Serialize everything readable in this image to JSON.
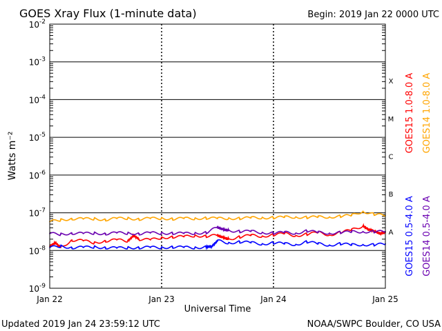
{
  "header": {
    "title": "GOES Xray Flux (1-minute data)",
    "begin": "Begin:  2019 Jan 22 0000 UTC"
  },
  "footer": {
    "updated": "Updated 2019 Jan 24 23:59:12 UTC",
    "credit": "NOAA/SWPC Boulder, CO USA"
  },
  "chart_data": {
    "type": "line",
    "title": "GOES Xray Flux (1-minute data)",
    "xlabel": "Universal Time",
    "ylabel": "Watts m⁻²",
    "y_scale": "log",
    "ylim": [
      1e-09,
      0.01
    ],
    "xlim": [
      0,
      3
    ],
    "x_ticks": [
      {
        "value": 0,
        "label": "Jan 22"
      },
      {
        "value": 1,
        "label": "Jan 23"
      },
      {
        "value": 2,
        "label": "Jan 24"
      },
      {
        "value": 3,
        "label": "Jan 25"
      }
    ],
    "y_ticks": [
      {
        "exp": -2,
        "base": "10",
        "sup": "-2"
      },
      {
        "exp": -3,
        "base": "10",
        "sup": "-3"
      },
      {
        "exp": -4,
        "base": "10",
        "sup": "-4"
      },
      {
        "exp": -5,
        "base": "10",
        "sup": "-5"
      },
      {
        "exp": -6,
        "base": "10",
        "sup": "-6"
      },
      {
        "exp": -7,
        "base": "10",
        "sup": "-7"
      },
      {
        "exp": -8,
        "base": "10",
        "sup": "-8"
      },
      {
        "exp": -9,
        "base": "10",
        "sup": "-9"
      }
    ],
    "flare_classes": [
      {
        "label": "X",
        "exp": -4
      },
      {
        "label": "M",
        "exp": -5
      },
      {
        "label": "C",
        "exp": -6
      },
      {
        "label": "B",
        "exp": -7
      },
      {
        "label": "A",
        "exp": -8
      }
    ],
    "grid": true,
    "legend_position": "right",
    "series": [
      {
        "name": "GOES15 1.0-8.0 A",
        "color": "#ff0000",
        "points": [
          [
            0.0,
            1.3e-08
          ],
          [
            0.05,
            1.6e-08
          ],
          [
            0.1,
            1.2e-08
          ],
          [
            0.2,
            1.9e-08
          ],
          [
            0.3,
            1.8e-08
          ],
          [
            0.4,
            1.6e-08
          ],
          [
            0.5,
            1.8e-08
          ],
          [
            0.6,
            1.9e-08
          ],
          [
            0.7,
            1.8e-08
          ],
          [
            0.75,
            2.5e-08
          ],
          [
            0.8,
            2e-08
          ],
          [
            0.9,
            1.9e-08
          ],
          [
            1.0,
            2.2e-08
          ],
          [
            1.1,
            2.3e-08
          ],
          [
            1.2,
            2.3e-08
          ],
          [
            1.3,
            2.5e-08
          ],
          [
            1.4,
            2.4e-08
          ],
          [
            1.5,
            2.5e-08
          ],
          [
            1.55,
            2.2e-08
          ],
          [
            1.6,
            2e-08
          ],
          [
            1.7,
            2.3e-08
          ],
          [
            1.8,
            2.5e-08
          ],
          [
            1.9,
            2.4e-08
          ],
          [
            2.0,
            2.6e-08
          ],
          [
            2.1,
            2.8e-08
          ],
          [
            2.2,
            2.5e-08
          ],
          [
            2.3,
            2.7e-08
          ],
          [
            2.4,
            3e-08
          ],
          [
            2.5,
            2.6e-08
          ],
          [
            2.6,
            3e-08
          ],
          [
            2.7,
            3.5e-08
          ],
          [
            2.8,
            4.5e-08
          ],
          [
            2.85,
            3.6e-08
          ],
          [
            2.9,
            3.3e-08
          ],
          [
            2.95,
            2.8e-08
          ],
          [
            3.0,
            3e-08
          ]
        ]
      },
      {
        "name": "GOES14 1.0-8.0 A",
        "color": "#ffa500",
        "points": [
          [
            0.0,
            5.8e-08
          ],
          [
            0.1,
            6.5e-08
          ],
          [
            0.2,
            7e-08
          ],
          [
            0.3,
            6.8e-08
          ],
          [
            0.4,
            7e-08
          ],
          [
            0.5,
            6.6e-08
          ],
          [
            0.6,
            7e-08
          ],
          [
            0.7,
            7.2e-08
          ],
          [
            0.8,
            6.8e-08
          ],
          [
            0.9,
            7e-08
          ],
          [
            1.0,
            7.2e-08
          ],
          [
            1.1,
            6.9e-08
          ],
          [
            1.2,
            7e-08
          ],
          [
            1.3,
            7.1e-08
          ],
          [
            1.4,
            7.3e-08
          ],
          [
            1.5,
            7e-08
          ],
          [
            1.6,
            7.2e-08
          ],
          [
            1.7,
            7.1e-08
          ],
          [
            1.8,
            7.3e-08
          ],
          [
            1.9,
            7.5e-08
          ],
          [
            2.0,
            7.4e-08
          ],
          [
            2.1,
            7.6e-08
          ],
          [
            2.2,
            7.8e-08
          ],
          [
            2.3,
            7.5e-08
          ],
          [
            2.4,
            7.7e-08
          ],
          [
            2.5,
            7.8e-08
          ],
          [
            2.6,
            8e-08
          ],
          [
            2.7,
            8.5e-08
          ],
          [
            2.8,
            1.1e-07
          ],
          [
            2.9,
            9e-08
          ],
          [
            3.0,
            8.5e-08
          ]
        ]
      },
      {
        "name": "GOES15 0.5-4.0 A",
        "color": "#0000ff",
        "points": [
          [
            0.0,
            1.2e-08
          ],
          [
            0.1,
            1.3e-08
          ],
          [
            0.2,
            1.2e-08
          ],
          [
            0.3,
            1.2e-08
          ],
          [
            0.4,
            1.25e-08
          ],
          [
            0.5,
            1.2e-08
          ],
          [
            0.6,
            1.15e-08
          ],
          [
            0.7,
            1.2e-08
          ],
          [
            0.8,
            1.2e-08
          ],
          [
            0.9,
            1.2e-08
          ],
          [
            1.0,
            1.2e-08
          ],
          [
            1.1,
            1.25e-08
          ],
          [
            1.2,
            1.2e-08
          ],
          [
            1.3,
            1.2e-08
          ],
          [
            1.4,
            1.25e-08
          ],
          [
            1.45,
            1.3e-08
          ],
          [
            1.5,
            1.8e-08
          ],
          [
            1.6,
            1.6e-08
          ],
          [
            1.7,
            1.7e-08
          ],
          [
            1.8,
            1.6e-08
          ],
          [
            1.9,
            1.5e-08
          ],
          [
            2.0,
            1.6e-08
          ],
          [
            2.1,
            1.5e-08
          ],
          [
            2.2,
            1.45e-08
          ],
          [
            2.3,
            1.7e-08
          ],
          [
            2.4,
            1.5e-08
          ],
          [
            2.5,
            1.4e-08
          ],
          [
            2.6,
            1.5e-08
          ],
          [
            2.7,
            1.4e-08
          ],
          [
            2.8,
            1.45e-08
          ],
          [
            2.9,
            1.4e-08
          ],
          [
            3.0,
            1.5e-08
          ]
        ]
      },
      {
        "name": "GOES14 0.5-4.0 A",
        "color": "#6a00b0",
        "points": [
          [
            0.0,
            2.8e-08
          ],
          [
            0.1,
            2.7e-08
          ],
          [
            0.2,
            2.9e-08
          ],
          [
            0.3,
            2.8e-08
          ],
          [
            0.4,
            2.9e-08
          ],
          [
            0.5,
            2.8e-08
          ],
          [
            0.6,
            2.9e-08
          ],
          [
            0.7,
            2.9e-08
          ],
          [
            0.8,
            2.8e-08
          ],
          [
            0.9,
            2.9e-08
          ],
          [
            1.0,
            2.9e-08
          ],
          [
            1.1,
            2.9e-08
          ],
          [
            1.2,
            2.8e-08
          ],
          [
            1.3,
            2.9e-08
          ],
          [
            1.4,
            3e-08
          ],
          [
            1.5,
            4.1e-08
          ],
          [
            1.55,
            3.6e-08
          ],
          [
            1.6,
            3.4e-08
          ],
          [
            1.7,
            3.2e-08
          ],
          [
            1.8,
            3.2e-08
          ],
          [
            1.9,
            3e-08
          ],
          [
            2.0,
            2.9e-08
          ],
          [
            2.1,
            3e-08
          ],
          [
            2.2,
            2.9e-08
          ],
          [
            2.3,
            3.3e-08
          ],
          [
            2.4,
            3e-08
          ],
          [
            2.5,
            2.9e-08
          ],
          [
            2.6,
            3e-08
          ],
          [
            2.7,
            3.1e-08
          ],
          [
            2.8,
            3.2e-08
          ],
          [
            2.9,
            3.1e-08
          ],
          [
            3.0,
            3.2e-08
          ]
        ]
      }
    ]
  }
}
